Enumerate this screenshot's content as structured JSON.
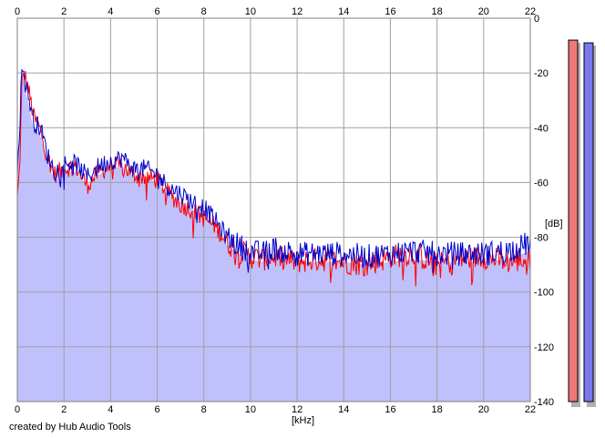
{
  "chart_data": {
    "type": "area",
    "xlabel": "[kHz]",
    "ylabel": "[dB]",
    "xlim": [
      0,
      22
    ],
    "ylim": [
      -140,
      0
    ],
    "x_ticks": [
      0,
      2,
      4,
      6,
      8,
      10,
      12,
      14,
      16,
      18,
      20,
      22
    ],
    "y_ticks": [
      0,
      -20,
      -40,
      -60,
      -80,
      -100,
      -120,
      -140
    ],
    "grid": true,
    "area_fill_color": "#c0c0fc",
    "series": [
      {
        "color": "#ff0000",
        "x": [
          0.0,
          0.1,
          0.2,
          0.3,
          0.5,
          0.7,
          1.0,
          1.3,
          1.6,
          2.0,
          2.5,
          3.0,
          3.5,
          4.0,
          4.5,
          5.0,
          5.5,
          6.0,
          6.5,
          7.0,
          7.5,
          8.0,
          8.5,
          9.0,
          9.5,
          10.0,
          10.5,
          11.0,
          12.0,
          13.0,
          14.0,
          15.0,
          16.0,
          17.0,
          18.0,
          19.0,
          20.0,
          21.0,
          22.0
        ],
        "y": [
          -66,
          -55,
          -24,
          -20,
          -27,
          -36,
          -41,
          -51,
          -57,
          -55,
          -54,
          -61,
          -56,
          -54,
          -54,
          -57,
          -58,
          -59,
          -64,
          -68,
          -70,
          -73,
          -76,
          -82,
          -85,
          -87,
          -88,
          -87,
          -89,
          -88,
          -89,
          -90,
          -87,
          -86,
          -90,
          -88,
          -87,
          -89,
          -88
        ]
      },
      {
        "color": "#0000cc",
        "x": [
          0.0,
          0.1,
          0.2,
          0.3,
          0.5,
          0.7,
          1.0,
          1.3,
          1.6,
          2.0,
          2.5,
          3.0,
          3.5,
          4.0,
          4.5,
          5.0,
          5.5,
          6.0,
          6.5,
          7.0,
          7.5,
          8.0,
          8.5,
          9.0,
          9.5,
          10.0,
          10.5,
          11.0,
          12.0,
          13.0,
          14.0,
          15.0,
          16.0,
          17.0,
          18.0,
          19.0,
          20.0,
          21.0,
          22.0
        ],
        "y": [
          -54,
          -40,
          -17,
          -22,
          -29,
          -38,
          -40,
          -50,
          -56,
          -53,
          -53,
          -58,
          -54,
          -52,
          -51,
          -55,
          -55,
          -57,
          -62,
          -64,
          -67,
          -69,
          -74,
          -80,
          -83,
          -85,
          -86,
          -84,
          -86,
          -86,
          -86,
          -87,
          -86,
          -85,
          -86,
          -86,
          -86,
          -85,
          -82
        ]
      }
    ],
    "level_meters": [
      {
        "value_db": -8,
        "color": "#f07878"
      },
      {
        "value_db": -9,
        "color": "#7878f0"
      }
    ]
  },
  "footer": {
    "credit": "created by Hub Audio Tools"
  }
}
